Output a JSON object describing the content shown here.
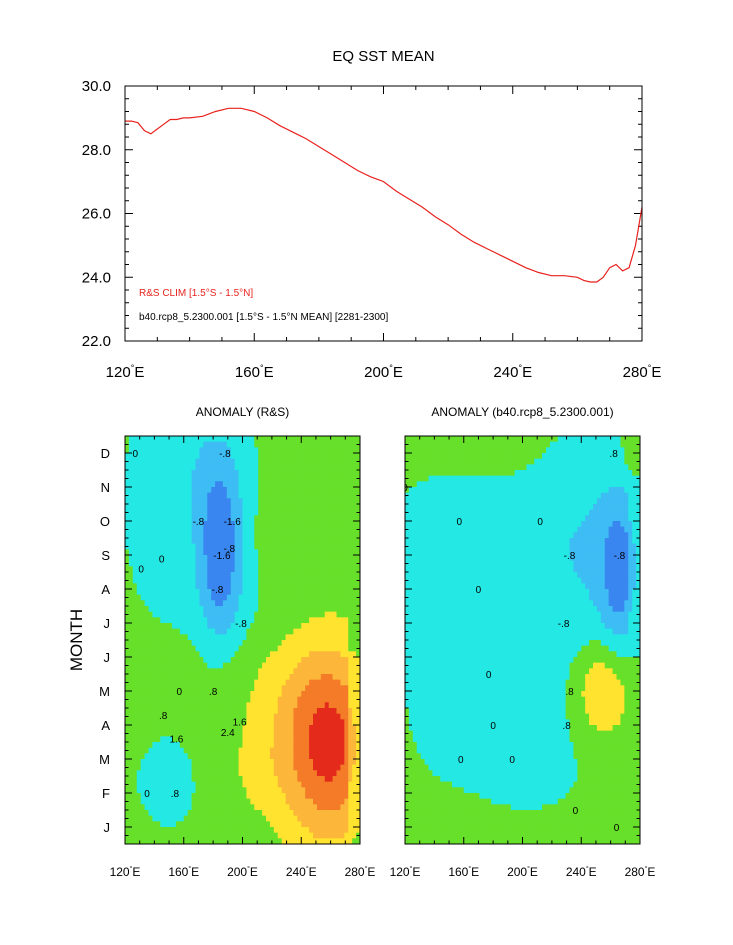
{
  "chart_data": [
    {
      "type": "line",
      "title": "EQ SST MEAN",
      "xlabel": "",
      "ylabel": "",
      "xlim": [
        120,
        280
      ],
      "ylim": [
        22.0,
        30.0
      ],
      "x_ticks": [
        120,
        160,
        200,
        240,
        280
      ],
      "x_tick_labels": [
        "120°E",
        "160°E",
        "200°E",
        "240°E",
        "280°E"
      ],
      "y_ticks": [
        22.0,
        24.0,
        26.0,
        28.0,
        30.0
      ],
      "y_tick_labels": [
        "22.0",
        "24.0",
        "26.0",
        "28.0",
        "30.0"
      ],
      "legend": [
        {
          "text": "R&S CLIM [1.5°S - 1.5°N]",
          "color": "#e8221e"
        },
        {
          "text": "b40.rcp8_5.2300.001 [1.5°S - 1.5°N MEAN] [2281-2300]",
          "color": "#000000"
        }
      ],
      "series": [
        {
          "name": "R&S CLIM [1.5°S - 1.5°N]",
          "color": "#e8221e",
          "x": [
            120,
            122,
            124,
            126,
            128,
            130,
            132,
            134,
            136,
            138,
            140,
            144,
            148,
            152,
            156,
            160,
            164,
            168,
            172,
            176,
            180,
            184,
            188,
            192,
            196,
            200,
            204,
            208,
            212,
            216,
            220,
            224,
            228,
            232,
            236,
            240,
            244,
            248,
            252,
            256,
            260,
            262,
            264,
            266,
            268,
            270,
            272,
            274,
            276,
            278,
            280
          ],
          "y": [
            28.9,
            28.9,
            28.85,
            28.6,
            28.5,
            28.65,
            28.8,
            28.95,
            28.95,
            29.0,
            29.0,
            29.05,
            29.2,
            29.3,
            29.3,
            29.2,
            29.0,
            28.75,
            28.55,
            28.35,
            28.1,
            27.85,
            27.6,
            27.35,
            27.15,
            27.0,
            26.7,
            26.45,
            26.2,
            25.9,
            25.65,
            25.35,
            25.1,
            24.9,
            24.7,
            24.5,
            24.3,
            24.15,
            24.05,
            24.05,
            24.0,
            23.9,
            23.85,
            23.85,
            24.0,
            24.3,
            24.4,
            24.2,
            24.3,
            25.0,
            26.2
          ]
        }
      ]
    },
    {
      "type": "heatmap",
      "title": "ANOMALY (R&S)",
      "ylabel": "MONTH",
      "xlim": [
        120,
        280
      ],
      "x_ticks": [
        120,
        160,
        200,
        240,
        280
      ],
      "x_tick_labels": [
        "120°E",
        "160°E",
        "200°E",
        "240°E",
        "280°E"
      ],
      "y_tick_labels": [
        "J",
        "F",
        "M",
        "A",
        "M",
        "J",
        "J",
        "A",
        "S",
        "O",
        "N",
        "D"
      ],
      "contour_labels": [
        {
          "text": "0",
          "lon": 127,
          "mon": 11.0
        },
        {
          "text": "-.8",
          "lon": 188,
          "mon": 11.0
        },
        {
          "text": "-.8",
          "lon": 170,
          "mon": 9.0
        },
        {
          "text": "-1.6",
          "lon": 193,
          "mon": 9.0
        },
        {
          "text": "-.8",
          "lon": 191,
          "mon": 8.2
        },
        {
          "text": "-1.6",
          "lon": 186,
          "mon": 8.0
        },
        {
          "text": "0",
          "lon": 145,
          "mon": 7.9
        },
        {
          "text": "0",
          "lon": 131,
          "mon": 7.6
        },
        {
          "text": "-.8",
          "lon": 183,
          "mon": 7.0
        },
        {
          "text": "-.8",
          "lon": 199,
          "mon": 6.0
        },
        {
          "text": "0",
          "lon": 157,
          "mon": 4.0
        },
        {
          "text": ".8",
          "lon": 180,
          "mon": 4.0
        },
        {
          "text": ".8",
          "lon": 146,
          "mon": 3.3
        },
        {
          "text": "1.6",
          "lon": 155,
          "mon": 2.6
        },
        {
          "text": "1.6",
          "lon": 198,
          "mon": 3.1
        },
        {
          "text": "2.4",
          "lon": 190,
          "mon": 2.8
        },
        {
          "text": ".8",
          "lon": 154,
          "mon": 1.0
        },
        {
          "text": "0",
          "lon": 135,
          "mon": 1.0
        },
        {
          "text": "0",
          "lon": 118,
          "mon": -0.4
        }
      ]
    },
    {
      "type": "heatmap",
      "title": "ANOMALY (b40.rcp8_5.2300.001)",
      "xlim": [
        120,
        280
      ],
      "x_ticks": [
        120,
        160,
        200,
        240,
        280
      ],
      "x_tick_labels": [
        "120°E",
        "160°E",
        "200°E",
        "240°E",
        "280°E"
      ],
      "contour_labels": [
        {
          "text": "0",
          "lon": 120,
          "mon": 10.0
        },
        {
          "text": ".8",
          "lon": 262,
          "mon": 11.0
        },
        {
          "text": "0",
          "lon": 157,
          "mon": 9.0
        },
        {
          "text": "0",
          "lon": 212,
          "mon": 9.0
        },
        {
          "text": "-.8",
          "lon": 232,
          "mon": 8.0
        },
        {
          "text": "-.8",
          "lon": 266,
          "mon": 8.0
        },
        {
          "text": "0",
          "lon": 170,
          "mon": 7.0
        },
        {
          "text": "-.8",
          "lon": 228,
          "mon": 6.0
        },
        {
          "text": "0",
          "lon": 177,
          "mon": 4.5
        },
        {
          "text": ".8",
          "lon": 232,
          "mon": 4.0
        },
        {
          "text": "0",
          "lon": 180,
          "mon": 3.0
        },
        {
          "text": ".8",
          "lon": 230,
          "mon": 3.0
        },
        {
          "text": "0",
          "lon": 158,
          "mon": 2.0
        },
        {
          "text": "0",
          "lon": 193,
          "mon": 2.0
        },
        {
          "text": "0",
          "lon": 236,
          "mon": 0.5
        },
        {
          "text": "0",
          "lon": 264,
          "mon": 0.0
        }
      ]
    }
  ]
}
